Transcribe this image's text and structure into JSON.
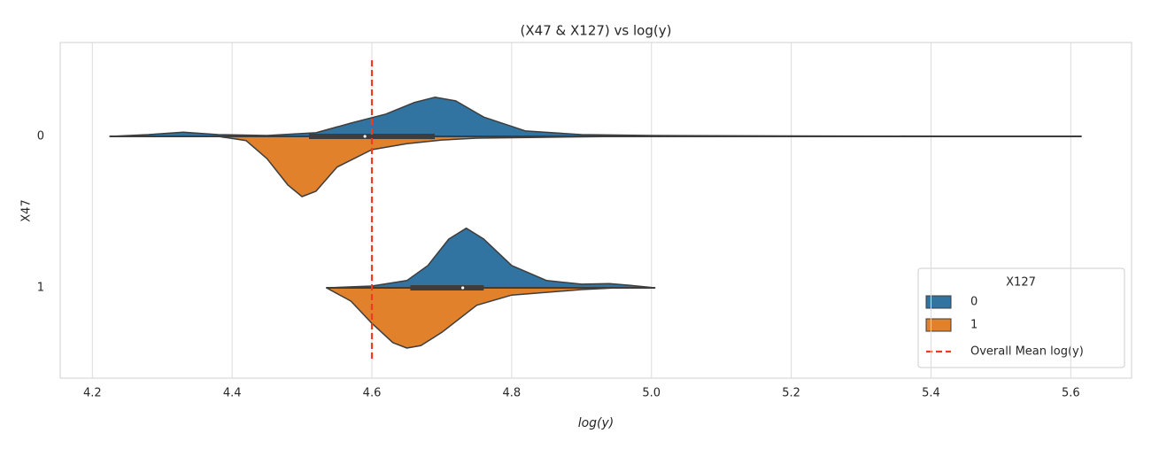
{
  "chart_data": {
    "type": "violin",
    "title": "(X47 & X127) vs log(y)",
    "x_label": "log(y)",
    "y_label": "X47",
    "categories": [
      "0",
      "1"
    ],
    "legend_title": "X127",
    "legend_position": "lower right",
    "grid": true,
    "xlim": [
      4.154,
      5.687
    ],
    "xticks": [
      4.2,
      4.4,
      4.6,
      4.8,
      {
        "value": 5,
        "label": "5.0"
      },
      5.2,
      5.4,
      5.6
    ],
    "series": [
      {
        "name": "0",
        "color": "#3274a1",
        "violins": [
          {
            "x": [
              4.225,
              4.28,
              4.33,
              4.38,
              4.45,
              4.52,
              4.57,
              4.62,
              4.66,
              4.69,
              4.72,
              4.76,
              4.82,
              4.9,
              5.0,
              5.2,
              5.615
            ],
            "density": [
              0,
              0.03,
              0.07,
              0.03,
              0.015,
              0.06,
              0.22,
              0.37,
              0.56,
              0.65,
              0.59,
              0.32,
              0.09,
              0.03,
              0.015,
              0.007,
              0
            ]
          },
          {
            "x": [
              4.535,
              4.6,
              4.65,
              4.68,
              4.71,
              4.735,
              4.76,
              4.8,
              4.85,
              4.9,
              4.94,
              4.97,
              5.005
            ],
            "density": [
              0,
              0.03,
              0.12,
              0.37,
              0.81,
              0.99,
              0.81,
              0.37,
              0.12,
              0.06,
              0.07,
              0.04,
              0
            ]
          }
        ]
      },
      {
        "name": "1",
        "color": "#e1812c",
        "violins": [
          {
            "x": [
              4.38,
              4.42,
              4.45,
              4.48,
              4.5,
              4.52,
              4.55,
              4.6,
              4.65,
              4.7,
              4.75,
              4.85,
              4.96
            ],
            "density": [
              0,
              0.07,
              0.37,
              0.81,
              1,
              0.91,
              0.51,
              0.22,
              0.12,
              0.06,
              0.03,
              0.015,
              0
            ]
          },
          {
            "x": [
              4.535,
              4.57,
              4.6,
              4.63,
              4.65,
              4.67,
              4.7,
              4.75,
              4.8,
              4.9,
              4.95
            ],
            "density": [
              0,
              0.22,
              0.59,
              0.91,
              1,
              0.96,
              0.74,
              0.29,
              0.12,
              0.03,
              0
            ]
          }
        ]
      }
    ],
    "box": [
      {
        "whislo": 4.225,
        "q1": 4.51,
        "median": 4.59,
        "q3": 4.69,
        "whishi": 5.615
      },
      {
        "whislo": 4.535,
        "q1": 4.655,
        "median": 4.73,
        "q3": 4.76,
        "whishi": 5.005
      }
    ],
    "mean_line": {
      "value": 4.6,
      "label": "Overall Mean log(y)",
      "color": "#f03b20"
    }
  }
}
